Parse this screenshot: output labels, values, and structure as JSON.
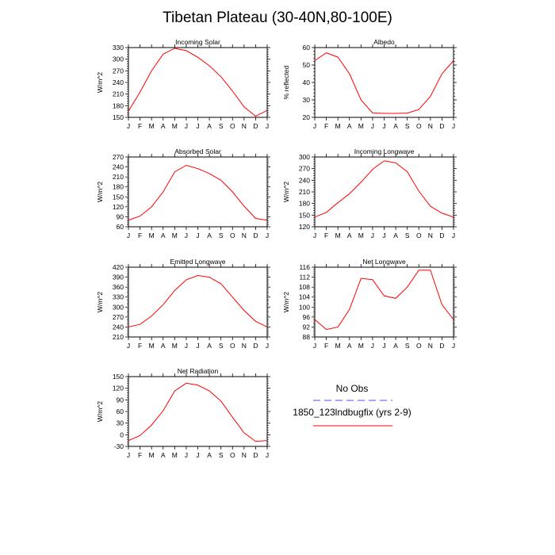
{
  "title": "Tibetan Plateau (30-40N,80-100E)",
  "legend": {
    "entries": [
      {
        "label": "No Obs",
        "color": "#4d4dff",
        "dashed": true
      },
      {
        "label": "1850_123lndbugfix (yrs 2-9)",
        "color": "#ff0000",
        "dashed": false
      }
    ]
  },
  "chart_data": [
    {
      "type": "line",
      "title": "Incoming Solar",
      "ylabel": "W/m^2",
      "categories": [
        "J",
        "F",
        "M",
        "A",
        "M",
        "J",
        "J",
        "A",
        "S",
        "O",
        "N",
        "D",
        "J"
      ],
      "ylim": [
        150,
        330
      ],
      "yticks": [
        150,
        180,
        210,
        240,
        270,
        300,
        330
      ],
      "series": [
        {
          "color": "#ff0000",
          "values": [
            166,
            215,
            270,
            313,
            328,
            322,
            305,
            283,
            255,
            218,
            177,
            153,
            168
          ]
        }
      ]
    },
    {
      "type": "line",
      "title": "Albedo",
      "ylabel": "% reflected",
      "categories": [
        "J",
        "F",
        "M",
        "A",
        "M",
        "J",
        "J",
        "A",
        "S",
        "O",
        "N",
        "D",
        "J"
      ],
      "ylim": [
        20,
        60
      ],
      "yticks": [
        20,
        30,
        40,
        50,
        60
      ],
      "series": [
        {
          "color": "#ff0000",
          "values": [
            52.5,
            57,
            54.5,
            45,
            30,
            22.5,
            22.3,
            22.3,
            22.4,
            24.5,
            32,
            45,
            52.5
          ]
        }
      ]
    },
    {
      "type": "line",
      "title": "Absorbed Solar",
      "ylabel": "W/m^2",
      "categories": [
        "J",
        "F",
        "M",
        "A",
        "M",
        "J",
        "J",
        "A",
        "S",
        "O",
        "N",
        "D",
        "J"
      ],
      "ylim": [
        60,
        270
      ],
      "yticks": [
        60,
        90,
        120,
        150,
        180,
        210,
        240,
        270
      ],
      "series": [
        {
          "color": "#ff0000",
          "values": [
            80,
            92,
            120,
            165,
            225,
            245,
            235,
            220,
            200,
            165,
            122,
            85,
            80
          ]
        }
      ]
    },
    {
      "type": "line",
      "title": "Incoming Longwave",
      "ylabel": "W/m^2",
      "categories": [
        "J",
        "F",
        "M",
        "A",
        "M",
        "J",
        "J",
        "A",
        "S",
        "O",
        "N",
        "D",
        "J"
      ],
      "ylim": [
        120,
        300
      ],
      "yticks": [
        120,
        150,
        180,
        210,
        240,
        270,
        300
      ],
      "series": [
        {
          "color": "#ff0000",
          "values": [
            145,
            157,
            182,
            205,
            235,
            268,
            290,
            285,
            262,
            212,
            173,
            155,
            145
          ]
        }
      ]
    },
    {
      "type": "line",
      "title": "Emitted Longwave",
      "ylabel": "W/m^2",
      "categories": [
        "J",
        "F",
        "M",
        "A",
        "M",
        "J",
        "J",
        "A",
        "S",
        "O",
        "N",
        "D",
        "J"
      ],
      "ylim": [
        210,
        420
      ],
      "yticks": [
        210,
        240,
        270,
        300,
        330,
        360,
        390,
        420
      ],
      "series": [
        {
          "color": "#ff0000",
          "values": [
            240,
            248,
            273,
            307,
            350,
            382,
            395,
            390,
            370,
            330,
            290,
            257,
            240
          ]
        }
      ]
    },
    {
      "type": "line",
      "title": "Net Longwave",
      "ylabel": "W/m^2",
      "categories": [
        "J",
        "F",
        "M",
        "A",
        "M",
        "J",
        "J",
        "A",
        "S",
        "O",
        "N",
        "D",
        "J"
      ],
      "ylim": [
        88,
        116
      ],
      "yticks": [
        88,
        92,
        96,
        100,
        104,
        108,
        112,
        116
      ],
      "series": [
        {
          "color": "#ff0000",
          "values": [
            95,
            91,
            92,
            99,
            111.5,
            111,
            104.5,
            103.5,
            108,
            114.8,
            114.8,
            101,
            95
          ]
        }
      ]
    },
    {
      "type": "line",
      "title": "Net Radiation",
      "ylabel": "W/m^2",
      "categories": [
        "J",
        "F",
        "M",
        "A",
        "M",
        "J",
        "J",
        "A",
        "S",
        "O",
        "N",
        "D",
        "J"
      ],
      "ylim": [
        -30,
        150
      ],
      "yticks": [
        -30,
        0,
        30,
        60,
        90,
        120,
        150
      ],
      "series": [
        {
          "color": "#ff0000",
          "values": [
            -15,
            -2,
            25,
            62,
            113,
            133,
            128,
            113,
            87,
            45,
            5,
            -17,
            -15
          ]
        }
      ]
    }
  ]
}
